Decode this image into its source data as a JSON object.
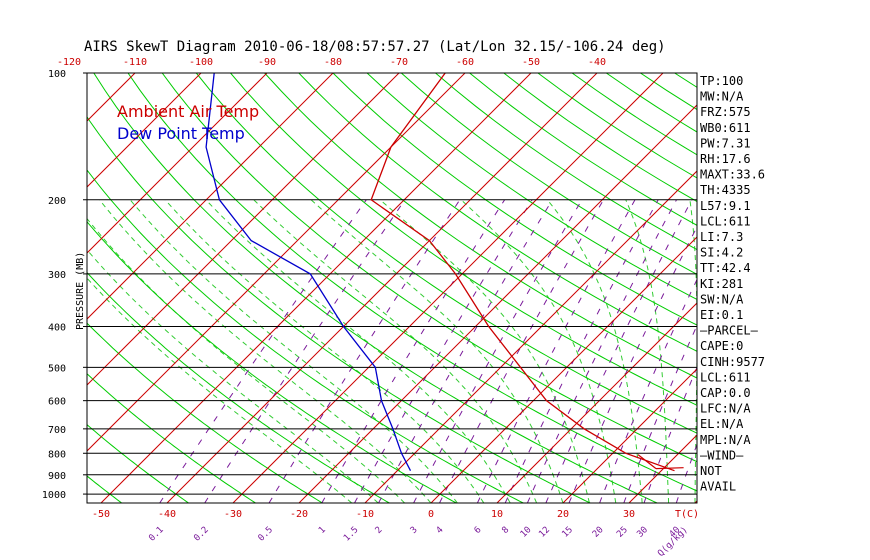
{
  "header": {
    "title": "AIRS SkewT Diagram 2010-06-18/08:57:57.27 (Lat/Lon 32.15/-106.24 deg)"
  },
  "legend": {
    "ambient": "Ambient Air Temp",
    "dewpoint": "Dew Point Temp",
    "ambient_color": "#cc0000",
    "dewpoint_color": "#0000cc"
  },
  "colors": {
    "isotherm": "#cc0000",
    "dry_adiabat": "#00cc00",
    "moist_adiabat": "#33cc33",
    "mixing_ratio": "#7a1a9a",
    "isobar": "#000000"
  },
  "chart_data": {
    "type": "line",
    "title": "AIRS SkewT Diagram 2010-06-18/08:57:57.27 (Lat/Lon 32.15/-106.24 deg)",
    "ylabel": "PRESSURE (MB)",
    "xlabel": "T(C)",
    "y_scale": "log",
    "ylim": [
      1050,
      100
    ],
    "pressure_ticks": [
      "100",
      "200",
      "300",
      "400",
      "500",
      "600",
      "700",
      "800",
      "900",
      "1000"
    ],
    "top_temp_ticks": [
      "-120",
      "-110",
      "-100",
      "-90",
      "-80",
      "-70",
      "-60",
      "-50",
      "-40"
    ],
    "bottom_temp_ticks": [
      "-50",
      "-40",
      "-30",
      "-20",
      "-10",
      "0",
      "10",
      "20",
      "30",
      "T(C)"
    ],
    "mixing_ratio_ticks": [
      "0.1",
      "0.2",
      "0.5",
      "1",
      "1.5",
      "2",
      "3",
      "4",
      "6",
      "8",
      "10",
      "12",
      "15",
      "20",
      "25",
      "30",
      "40",
      "Q(g/kg)"
    ],
    "mixing_ratio_values": [
      0.1,
      0.2,
      0.5,
      1,
      1.5,
      2,
      3,
      4,
      6,
      8,
      10,
      12,
      15,
      20,
      25,
      30,
      40
    ],
    "series": [
      {
        "name": "Ambient Air Temp",
        "pressure": [
          880,
          800,
          700,
          600,
          500,
          400,
          300,
          250,
          200,
          150,
          100
        ],
        "temperature": [
          32,
          22,
          12,
          2,
          -7,
          -18,
          -31,
          -40,
          -55,
          -60,
          -63
        ]
      },
      {
        "name": "Dew Point Temp",
        "pressure": [
          880,
          800,
          700,
          600,
          500,
          400,
          300,
          250,
          200,
          150,
          100
        ],
        "temperature": [
          -8,
          -12,
          -17,
          -23,
          -29,
          -40,
          -53,
          -67,
          -78,
          -88,
          -98
        ]
      }
    ],
    "wind_barb": {
      "pressure": 870,
      "direction_deg": 280,
      "speed_kt": 5
    },
    "grid": true,
    "legend_position": "top-left"
  },
  "indices": [
    "TP:100",
    "MW:N/A",
    "FRZ:575",
    "WB0:611",
    "PW:7.31",
    "RH:17.6",
    "MAXT:33.6",
    "TH:4335",
    "L57:9.1",
    "LCL:611",
    "LI:7.3",
    "SI:4.2",
    "TT:42.4",
    "KI:281",
    "SW:N/A",
    "EI:0.1",
    "—PARCEL—",
    "CAPE:0",
    "CINH:9577",
    "LCL:611",
    "CAP:0.0",
    "LFC:N/A",
    "EL:N/A",
    "MPL:N/A",
    "—WIND—",
    "NOT",
    "AVAIL"
  ]
}
